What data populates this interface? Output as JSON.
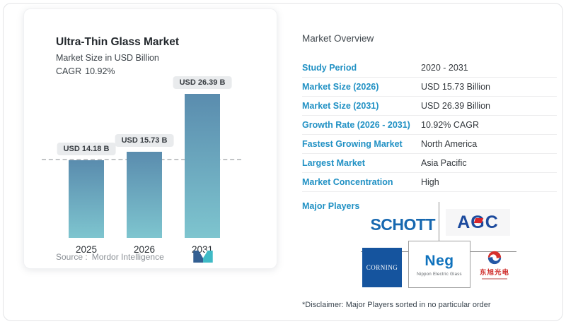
{
  "chart_card": {
    "title": "Ultra-Thin Glass Market",
    "subtitle": "Market Size in USD Billion",
    "cagr_label": "CAGR",
    "cagr_value": "10.92%",
    "source_label": "Source :",
    "source_name": "Mordor Intelligence"
  },
  "chart_data": {
    "type": "bar",
    "title": "Ultra-Thin Glass Market",
    "subtitle": "Market Size in USD Billion",
    "cagr": "10.92%",
    "categories": [
      "2025",
      "2026",
      "2031"
    ],
    "values": [
      14.18,
      15.73,
      26.39
    ],
    "bar_labels": [
      "USD 14.18 B",
      "USD 15.73 B",
      "USD 26.39 B"
    ],
    "ylim": [
      0,
      26.39
    ],
    "reference_line": 14.18,
    "grid": false,
    "legend": "none",
    "bar_gradient_top": "#5a8cae",
    "bar_gradient_bottom": "#7ec5cf"
  },
  "overview": {
    "title": "Market Overview",
    "rows": [
      {
        "label": "Study Period",
        "value": "2020 - 2031"
      },
      {
        "label": "Market Size (2026)",
        "value": "USD 15.73 Billion"
      },
      {
        "label": "Market Size (2031)",
        "value": "USD 26.39 Billion"
      },
      {
        "label": "Growth Rate (2026 - 2031)",
        "value": "10.92% CAGR"
      },
      {
        "label": "Fastest Growing Market",
        "value": "North America"
      },
      {
        "label": "Largest Market",
        "value": "Asia Pacific"
      },
      {
        "label": "Market Concentration",
        "value": "High"
      }
    ],
    "major_players_label": "Major Players",
    "disclaimer": "*Disclaimer: Major Players sorted in no particular order"
  },
  "logos": {
    "schott_text": "SCHOTT",
    "agc_text": "AGC",
    "corning_text": "CORNING",
    "neg_text": "Neg",
    "neg_subtext": "Nippon Electric Glass",
    "dongxu_text": "东旭光电"
  },
  "colors": {
    "label_blue": "#2191c4",
    "cagr_value_blue": "#7db8d2",
    "bar_top": "#5a8cae",
    "bar_bottom": "#7ec5cf",
    "badge_bg": "#e9ebed",
    "schott_blue": "#1768b0",
    "agc_blue": "#1c4a9d",
    "agc_red": "#d8262c",
    "corning_blue": "#15549e",
    "neg_blue": "#0f72bd",
    "dongxu_red": "#cf2a28",
    "mordor_blue": "#335f92",
    "mordor_teal": "#3fbac6"
  }
}
